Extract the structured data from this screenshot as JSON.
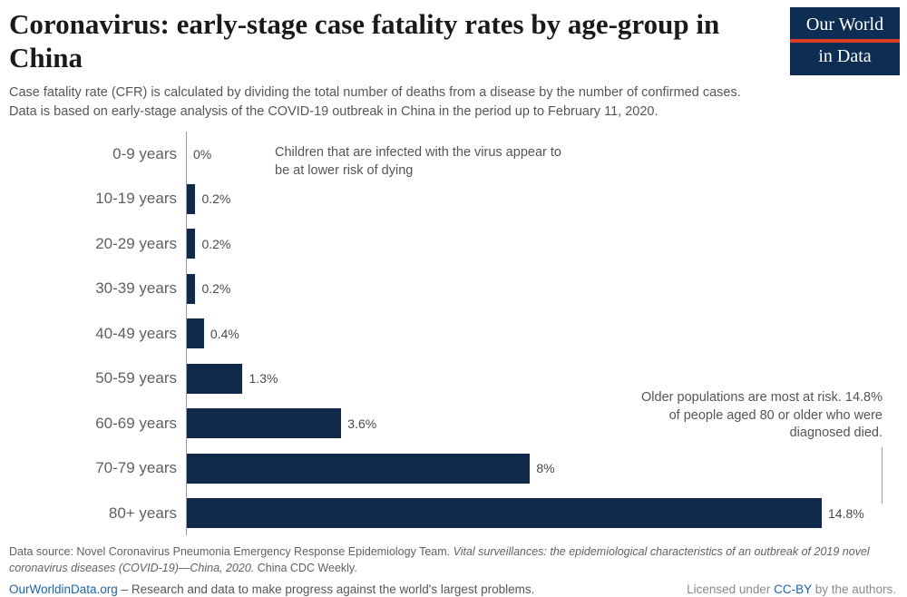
{
  "header": {
    "title": "Coronavirus: early-stage case fatality rates by age-group in China",
    "subtitle_line1": "Case fatality rate (CFR) is calculated by dividing the total number of deaths from a disease by the number of confirmed cases.",
    "subtitle_line2": "Data is based on early-stage analysis of the COVID-19 outbreak in China in the period up to February 11, 2020.",
    "logo": {
      "line1": "Our World",
      "line2": "in Data",
      "bg_color": "#0d2e52",
      "accent_color": "#dc3b24"
    }
  },
  "chart_data": {
    "type": "bar",
    "orientation": "horizontal",
    "title": "Coronavirus: early-stage case fatality rates by age-group in China",
    "xlabel": "",
    "ylabel": "",
    "xlim": [
      0,
      14.8
    ],
    "grid": false,
    "legend": "none",
    "categories": [
      "0-9 years",
      "10-19 years",
      "20-29 years",
      "30-39 years",
      "40-49 years",
      "50-59 years",
      "60-69 years",
      "70-79 years",
      "80+ years"
    ],
    "values": [
      0,
      0.2,
      0.2,
      0.2,
      0.4,
      1.3,
      3.6,
      8,
      14.8
    ],
    "value_labels": [
      "0%",
      "0.2%",
      "0.2%",
      "0.2%",
      "0.4%",
      "1.3%",
      "3.6%",
      "8%",
      "14.8%"
    ],
    "bar_color": "#10294a",
    "annotations": [
      {
        "text": "Children that are infected with the virus appear to be at lower risk of dying"
      },
      {
        "text": "Older populations are most at risk. 14.8% of people aged 80 or older who were diagnosed died."
      }
    ]
  },
  "footer": {
    "source_prefix": "Data source: Novel Coronavirus Pneumonia Emergency Response Epidemiology Team. ",
    "source_italic": "Vital surveillances: the epidemiological characteristics of an outbreak of 2019 novel coronavirus diseases (COVID-19)—China, 2020.",
    "source_suffix": " China CDC Weekly.",
    "site_link": "OurWorldinData.org",
    "site_tagline": " – Research and data to make progress against the world's largest problems.",
    "license_prefix": "Licensed under ",
    "license_link": "CC-BY",
    "license_suffix": " by the authors."
  }
}
